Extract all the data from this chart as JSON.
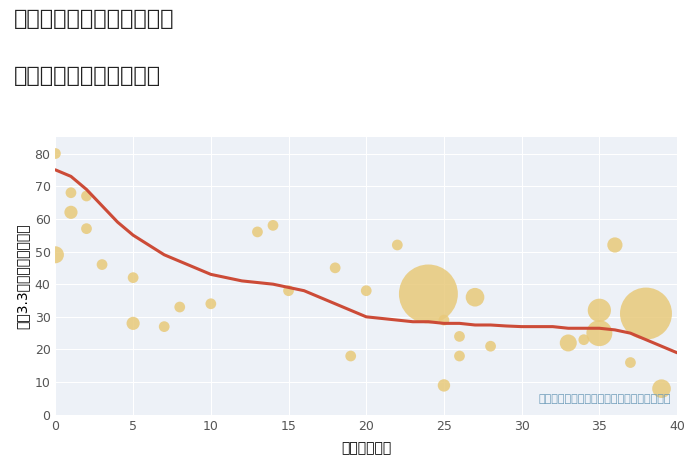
{
  "title_line1": "三重県津市芸濃町雲林院の",
  "title_line2": "築年数別中古戸建て価格",
  "xlabel": "築年数（年）",
  "ylabel": "坪（3.3㎡）単価（万円）",
  "background_color": "#ffffff",
  "plot_bg_color": "#edf1f7",
  "grid_color": "#ffffff",
  "annotation": "円の大きさは、取引のあった物件面積を示す",
  "annotation_color": "#6b9ab8",
  "xlim": [
    0,
    40
  ],
  "ylim": [
    0,
    85
  ],
  "xticks": [
    0,
    5,
    10,
    15,
    20,
    25,
    30,
    35,
    40
  ],
  "yticks": [
    0,
    10,
    20,
    30,
    40,
    50,
    60,
    70,
    80
  ],
  "bubble_color": "#e8c97a",
  "bubble_alpha": 0.85,
  "line_color": "#cc4b37",
  "line_width": 2.2,
  "scatter_x": [
    0,
    0,
    1,
    1,
    2,
    2,
    3,
    5,
    5,
    7,
    8,
    10,
    13,
    14,
    15,
    18,
    19,
    20,
    22,
    24,
    25,
    25,
    26,
    26,
    27,
    28,
    33,
    34,
    35,
    35,
    36,
    37,
    38,
    39
  ],
  "scatter_y": [
    80,
    49,
    68,
    62,
    67,
    57,
    46,
    42,
    28,
    27,
    33,
    34,
    56,
    58,
    38,
    45,
    18,
    38,
    52,
    37,
    9,
    29,
    24,
    18,
    36,
    21,
    22,
    23,
    25,
    32,
    52,
    16,
    31,
    8
  ],
  "scatter_size": [
    60,
    150,
    60,
    90,
    60,
    60,
    60,
    60,
    90,
    60,
    60,
    60,
    60,
    60,
    60,
    60,
    60,
    60,
    60,
    1800,
    80,
    60,
    60,
    60,
    180,
    60,
    150,
    60,
    350,
    280,
    120,
    60,
    1400,
    180
  ],
  "line_x": [
    0,
    0.5,
    1,
    1.5,
    2,
    3,
    4,
    5,
    6,
    7,
    8,
    9,
    10,
    11,
    12,
    13,
    14,
    15,
    16,
    17,
    18,
    19,
    20,
    21,
    22,
    23,
    24,
    25,
    26,
    27,
    28,
    29,
    30,
    31,
    32,
    33,
    34,
    35,
    36,
    37,
    38,
    39,
    40
  ],
  "line_y": [
    75,
    74,
    73,
    71,
    69,
    64,
    59,
    55,
    52,
    49,
    47,
    45,
    43,
    42,
    41,
    40.5,
    40,
    39,
    38,
    36,
    34,
    32,
    30,
    29.5,
    29,
    28.5,
    28.5,
    28,
    28,
    27.5,
    27.5,
    27.2,
    27,
    27,
    27,
    26.5,
    26.5,
    26.5,
    26,
    25,
    23,
    21,
    19
  ],
  "title_fontsize": 16,
  "label_fontsize": 10,
  "tick_fontsize": 9,
  "annotation_fontsize": 8
}
